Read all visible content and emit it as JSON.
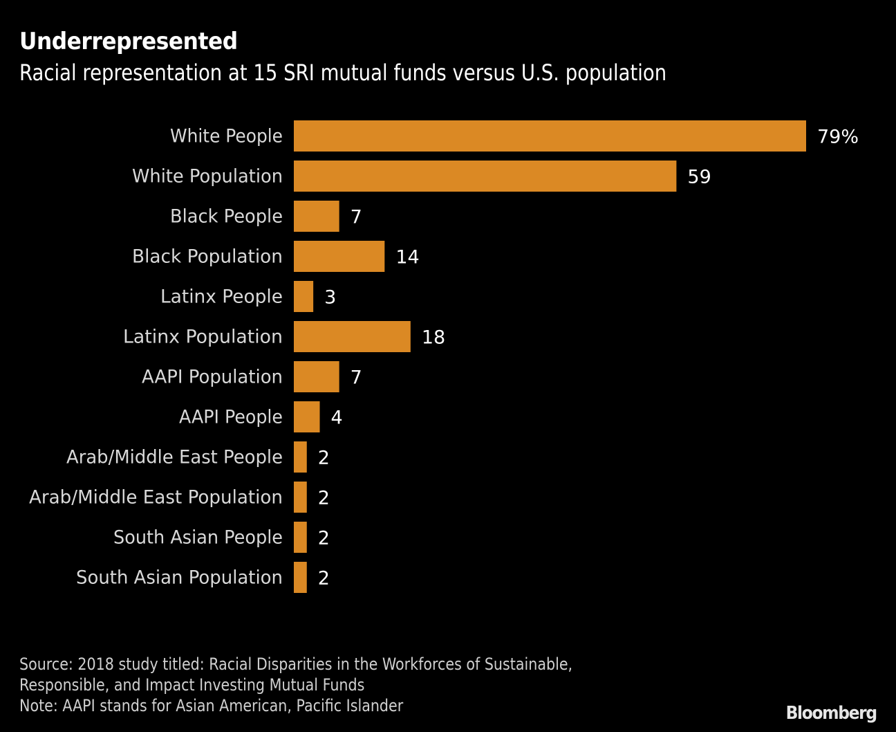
{
  "chart_data": {
    "type": "bar",
    "orientation": "horizontal",
    "title": "Underrepresented",
    "subtitle": "Racial representation at 15 SRI mutual funds versus U.S. population",
    "categories": [
      "White People",
      "White Population",
      "Black People",
      "Black Population",
      "Latinx People",
      "Latinx Population",
      "AAPI Population",
      "AAPI People",
      "Arab/Middle East People",
      "Arab/Middle East Population",
      "South Asian People",
      "South Asian Population"
    ],
    "values": [
      79,
      59,
      7,
      14,
      3,
      18,
      7,
      4,
      2,
      2,
      2,
      2
    ],
    "value_labels": [
      "79%",
      "59",
      "7",
      "14",
      "3",
      "18",
      "7",
      "4",
      "2",
      "2",
      "2",
      "2"
    ],
    "unit": "%",
    "xlabel": "",
    "ylabel": "",
    "xlim": [
      0,
      79
    ],
    "grid": false,
    "legend": "none",
    "bar_color": "#DB8924"
  },
  "footer": {
    "source_line1": "Source: 2018 study titled: Racial Disparities in the Workforces of Sustainable,",
    "source_line2": "Responsible, and Impact Investing Mutual Funds",
    "note": "Note: AAPI stands for Asian American, Pacific Islander"
  },
  "brand": "Bloomberg"
}
